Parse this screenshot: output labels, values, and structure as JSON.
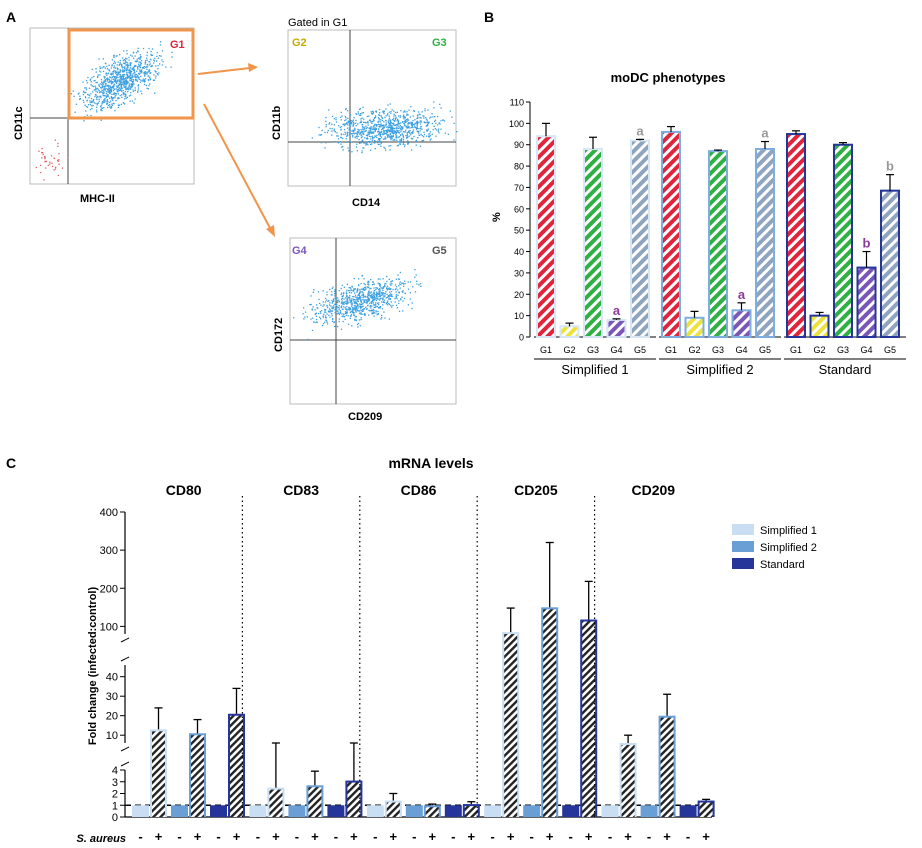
{
  "panel_labels": {
    "a": "A",
    "b": "B",
    "c": "C"
  },
  "colors": {
    "s1_light": "#c9def2",
    "s2_mid": "#6a9fd6",
    "standard": "#26359a",
    "G1": "#e0243c",
    "G2": "#ece33a",
    "G3": "#2eb042",
    "G4": "#7a56b8",
    "G5": "#8ea4bf",
    "gate": "#f0954a",
    "dots": "#3a9fe0",
    "neg_dots": "#e06060",
    "letter_a": "#999999",
    "letter_ab": "#8a3a9a"
  },
  "flow": {
    "main": {
      "xlabel": "MHC-II",
      "ylabel": "CD11c",
      "gate": "G1"
    },
    "gated_note": "Gated in G1",
    "cd14": {
      "xlabel": "CD14",
      "ylabel": "CD11b",
      "q_left": "G2",
      "q_right": "G3"
    },
    "cd209": {
      "xlabel": "CD209",
      "ylabel": "CD172",
      "q_left": "G4",
      "q_right": "G5"
    }
  },
  "chart_data": [
    {
      "type": "bar",
      "title": "moDC phenotypes",
      "ylabel": "%",
      "ylim": [
        0,
        110
      ],
      "yticks": [
        "0",
        "10",
        "20",
        "30",
        "40",
        "50",
        "60",
        "70",
        "80",
        "90",
        "100",
        "110"
      ],
      "categories": [
        "G1",
        "G2",
        "G3",
        "G4",
        "G5"
      ],
      "groups": [
        {
          "name": "Simplified 1",
          "values": [
            94,
            5,
            88,
            8,
            92
          ],
          "errors": [
            6,
            1.5,
            5.5,
            0.5,
            0.5
          ],
          "letters": [
            "",
            "",
            "",
            "a",
            "a"
          ]
        },
        {
          "name": "Simplified 2",
          "values": [
            96,
            9,
            87,
            12.5,
            88
          ],
          "errors": [
            2.5,
            3,
            0.5,
            3.5,
            3.5
          ],
          "letters": [
            "",
            "",
            "",
            "a",
            "a"
          ]
        },
        {
          "name": "Standard",
          "values": [
            95,
            10,
            90,
            32.5,
            68.5
          ],
          "errors": [
            1.5,
            1.5,
            1,
            7.5,
            7.5
          ],
          "letters": [
            "",
            "",
            "",
            "b",
            "b"
          ]
        }
      ]
    },
    {
      "type": "bar",
      "title": "mRNA levels",
      "ylabel": "Fold change (infected:control)",
      "y_segments": [
        {
          "range": [
            0,
            4
          ],
          "ticks": [
            "0",
            "1",
            "2",
            "3",
            "4"
          ]
        },
        {
          "range": [
            6,
            46
          ],
          "ticks": [
            "10",
            "20",
            "30",
            "40"
          ]
        },
        {
          "range": [
            80,
            400
          ],
          "ticks": [
            "100",
            "200",
            "300",
            "400"
          ]
        }
      ],
      "reference_line": 1,
      "genes": [
        "CD80",
        "CD83",
        "CD86",
        "CD205",
        "CD209"
      ],
      "series": [
        "Simplified 1",
        "Simplified 2",
        "Standard"
      ],
      "control_label": "-",
      "infected_label": "+",
      "xlabel": "S. aureus",
      "infected_values": [
        [
          13,
          11,
          21
        ],
        [
          2.5,
          2.7,
          3.1
        ],
        [
          1.4,
          1.0,
          1.1
        ],
        [
          85,
          150,
          118
        ],
        [
          6,
          20,
          1.4
        ]
      ],
      "infected_errors": [
        [
          11,
          7,
          13
        ],
        [
          1.8,
          1.2,
          1.4
        ],
        [
          0.6,
          0.1,
          0.2
        ],
        [
          63,
          170,
          100
        ],
        [
          4,
          11,
          0.1
        ]
      ]
    }
  ],
  "legend": [
    "Simplified 1",
    "Simplified 2",
    "Standard"
  ]
}
